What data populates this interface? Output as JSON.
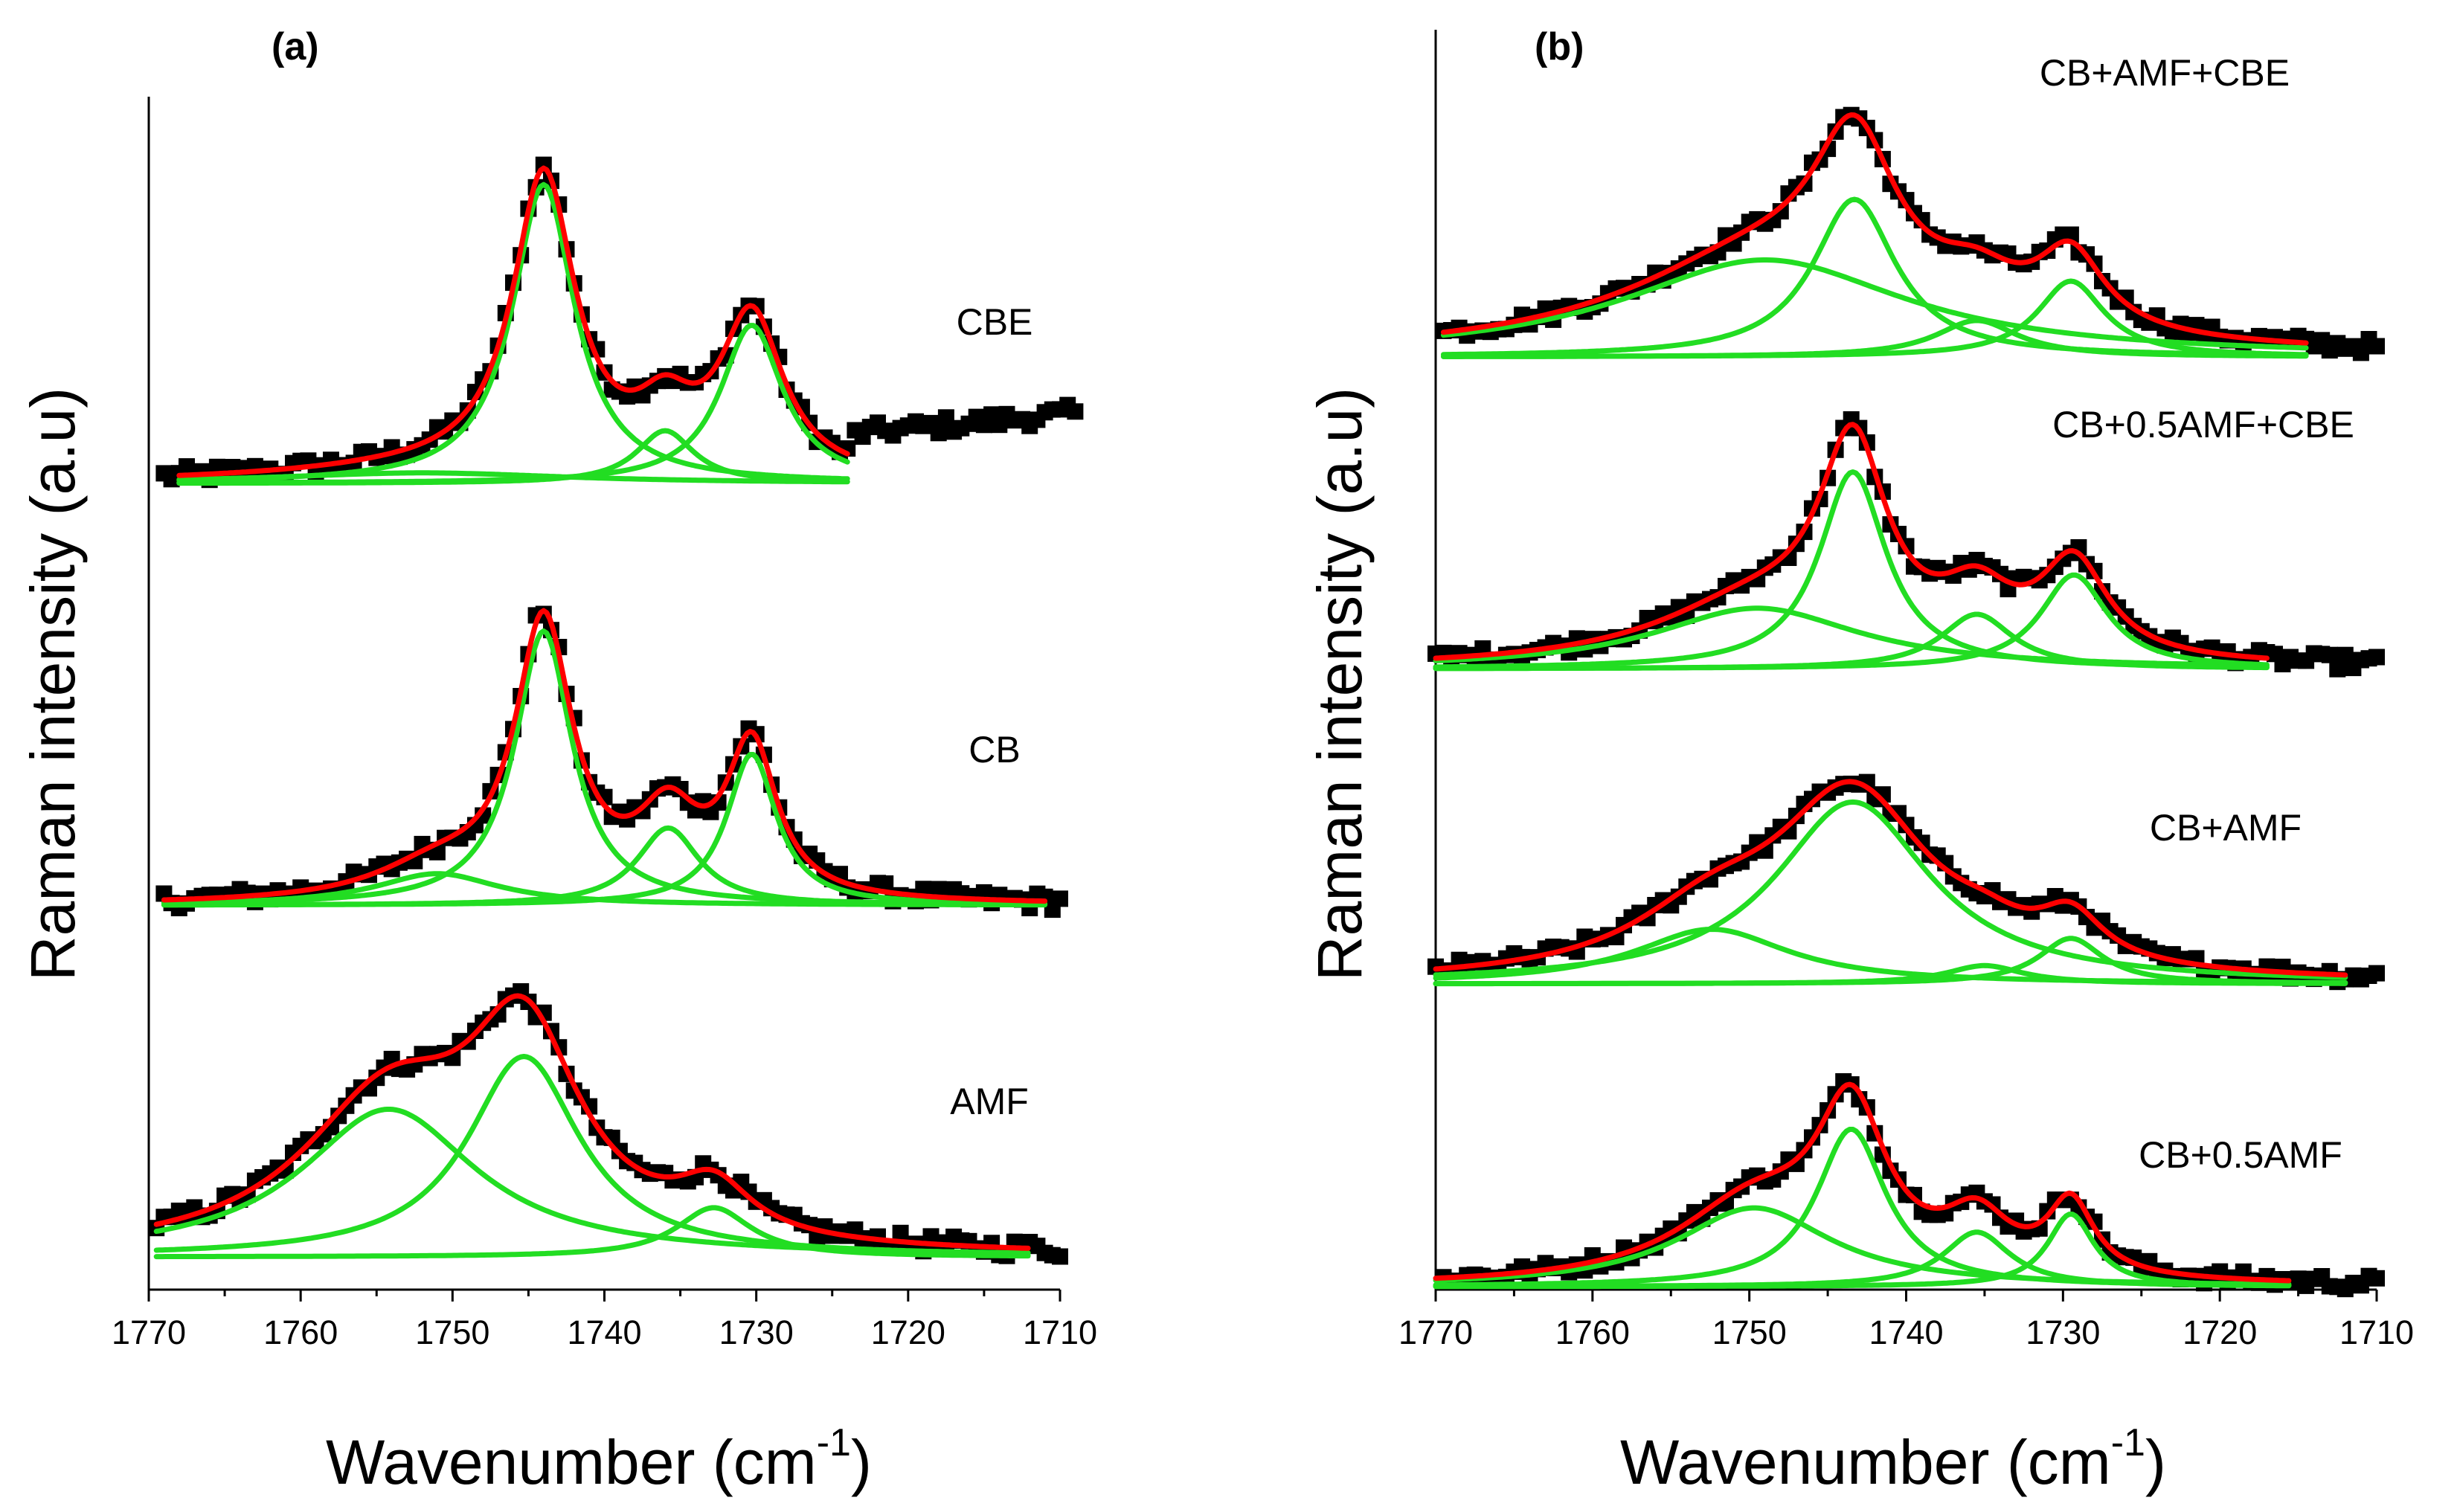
{
  "colors": {
    "data": "#000000",
    "fit": "#ff0000",
    "component": "#22dd22"
  },
  "chart_data": [
    {
      "id": "a",
      "type": "line",
      "panel_label": "(a)",
      "xlabel": "Wavenumber (cm",
      "xlabel_sup": "-1",
      "xlabel_close": ")",
      "ylabel": "Raman intensity (a.u)",
      "xlim": [
        1770,
        1710
      ],
      "xticks": [
        1770,
        1760,
        1750,
        1740,
        1730,
        1720,
        1710
      ],
      "ylim": [
        0,
        3.3
      ],
      "traces": [
        {
          "name": "CBE",
          "offset": 2.2,
          "data_x": [
            1769,
            1709
          ],
          "fit_x": [
            1768,
            1724
          ],
          "components": [
            {
              "center": 1744,
              "amp": 0.85,
              "width": 2.5
            },
            {
              "center": 1730.3,
              "amp": 0.45,
              "width": 2.5
            },
            {
              "center": 1736,
              "amp": 0.15,
              "width": 2.3
            },
            {
              "center": 1752,
              "amp": 0.03,
              "width": 12
            }
          ],
          "tail": {
            "x0": 1724,
            "level": 0.14,
            "slope": 0.004
          }
        },
        {
          "name": "CB",
          "offset": 1.0,
          "data_x": [
            1769,
            1710
          ],
          "fit_x": [
            1769,
            1711
          ],
          "components": [
            {
              "center": 1744,
              "amp": 0.78,
              "width": 2.3
            },
            {
              "center": 1730.3,
              "amp": 0.43,
              "width": 2.0
            },
            {
              "center": 1735.8,
              "amp": 0.22,
              "width": 2.5
            },
            {
              "center": 1751,
              "amp": 0.09,
              "width": 5
            }
          ]
        },
        {
          "name": "AMF",
          "offset": 0.0,
          "data_x": [
            1769.5,
            1710
          ],
          "fit_x": [
            1769.5,
            1712
          ],
          "components": [
            {
              "center": 1745.3,
              "amp": 0.57,
              "width": 4.5
            },
            {
              "center": 1754.2,
              "amp": 0.42,
              "width": 7
            },
            {
              "center": 1732.8,
              "amp": 0.14,
              "width": 3
            }
          ]
        }
      ]
    },
    {
      "id": "b",
      "type": "line",
      "panel_label": "(b)",
      "xlabel": "Wavenumber (cm",
      "xlabel_sup": "-1",
      "xlabel_close": ")",
      "ylabel": "Raman intensity (a.u)",
      "xlim": [
        1770,
        1710
      ],
      "xticks": [
        1770,
        1760,
        1750,
        1740,
        1730,
        1720,
        1710
      ],
      "ylim": [
        0,
        4.15
      ],
      "traces": [
        {
          "name": "CB+AMF+CBE",
          "offset": 3.07,
          "data_x": [
            1769.5,
            1710
          ],
          "fit_x": [
            1769.5,
            1714.5
          ],
          "components": [
            {
              "center": 1743.3,
              "amp": 0.52,
              "width": 3.2
            },
            {
              "center": 1749,
              "amp": 0.32,
              "width": 11
            },
            {
              "center": 1729.5,
              "amp": 0.25,
              "width": 2.6
            },
            {
              "center": 1735.5,
              "amp": 0.12,
              "width": 3.2
            }
          ]
        },
        {
          "name": "CB+0.5AMF+CBE",
          "offset": 2.04,
          "data_x": [
            1770,
            1710
          ],
          "fit_x": [
            1770,
            1717
          ],
          "components": [
            {
              "center": 1743.4,
              "amp": 0.65,
              "width": 2.6
            },
            {
              "center": 1749.5,
              "amp": 0.2,
              "width": 8
            },
            {
              "center": 1729.3,
              "amp": 0.31,
              "width": 2.6
            },
            {
              "center": 1735.5,
              "amp": 0.18,
              "width": 2.8
            }
          ]
        },
        {
          "name": "CB+AMF",
          "offset": 1.0,
          "data_x": [
            1770,
            1710
          ],
          "fit_x": [
            1770,
            1712
          ],
          "components": [
            {
              "center": 1743.4,
              "amp": 0.6,
              "width": 6
            },
            {
              "center": 1752.4,
              "amp": 0.18,
              "width": 6
            },
            {
              "center": 1729.5,
              "amp": 0.15,
              "width": 2.5
            },
            {
              "center": 1735,
              "amp": 0.06,
              "width": 3
            }
          ]
        },
        {
          "name": "CB+0.5AMF",
          "offset": 0.0,
          "data_x": [
            1769.5,
            1710
          ],
          "fit_x": [
            1770,
            1715.5
          ],
          "components": [
            {
              "center": 1743.5,
              "amp": 0.52,
              "width": 2.7
            },
            {
              "center": 1749.7,
              "amp": 0.26,
              "width": 6
            },
            {
              "center": 1729.5,
              "amp": 0.24,
              "width": 1.8
            },
            {
              "center": 1735.5,
              "amp": 0.18,
              "width": 2.6
            }
          ]
        }
      ]
    }
  ]
}
